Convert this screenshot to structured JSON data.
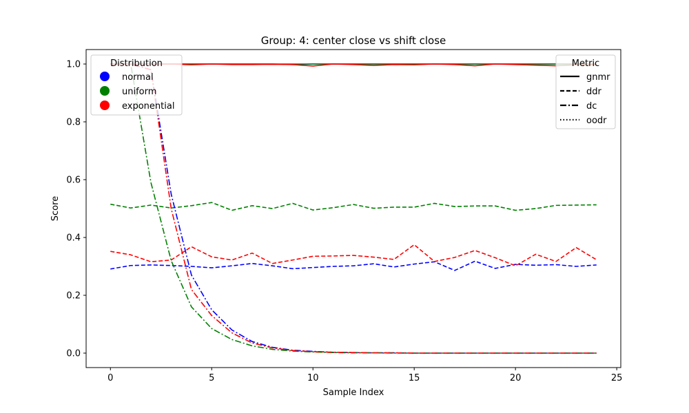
{
  "chart_data": {
    "type": "line",
    "title": "Group: 4: center close vs shift close",
    "xlabel": "Sample Index",
    "ylabel": "Score",
    "xlim": [
      -1.2,
      25.2
    ],
    "ylim": [
      -0.05,
      1.05
    ],
    "xticks": [
      0,
      5,
      10,
      15,
      20,
      25
    ],
    "yticks": [
      0.0,
      0.2,
      0.4,
      0.6,
      0.8,
      1.0
    ],
    "grid": false,
    "x": [
      0,
      1,
      2,
      3,
      4,
      5,
      6,
      7,
      8,
      9,
      10,
      11,
      12,
      13,
      14,
      15,
      16,
      17,
      18,
      19,
      20,
      21,
      22,
      23,
      24
    ],
    "legend_distribution": {
      "title": "Distribution",
      "placement": "top-left",
      "entries": [
        {
          "label": "normal",
          "color": "#0000ff"
        },
        {
          "label": "uniform",
          "color": "#008000"
        },
        {
          "label": "exponential",
          "color": "#ff0000"
        }
      ]
    },
    "legend_metric": {
      "title": "Metric",
      "placement": "top-right",
      "entries": [
        {
          "label": "gnmr",
          "dash": "solid"
        },
        {
          "label": "ddr",
          "dash": "dashed"
        },
        {
          "label": "dc",
          "dash": "dashdot"
        },
        {
          "label": "oodr",
          "dash": "dotted"
        }
      ]
    },
    "series": [
      {
        "distribution": "normal",
        "metric": "gnmr",
        "color": "#0000ff",
        "dash": "solid",
        "values": [
          1.0,
          1.0,
          1.0,
          1.0,
          1.0,
          1.0,
          1.0,
          1.0,
          1.0,
          0.998,
          1.0,
          1.0,
          1.0,
          1.0,
          1.0,
          1.0,
          1.0,
          1.0,
          1.0,
          1.0,
          1.0,
          1.0,
          1.0,
          1.0,
          1.0
        ]
      },
      {
        "distribution": "uniform",
        "metric": "gnmr",
        "color": "#008000",
        "dash": "solid",
        "values": [
          1.0,
          1.0,
          1.0,
          1.0,
          1.0,
          1.0,
          1.0,
          1.0,
          1.0,
          1.0,
          1.0,
          1.0,
          1.0,
          1.0,
          1.0,
          1.0,
          1.0,
          1.0,
          1.0,
          1.0,
          1.0,
          1.0,
          1.0,
          1.0,
          1.0
        ]
      },
      {
        "distribution": "exponential",
        "metric": "gnmr",
        "color": "#ff0000",
        "dash": "solid",
        "values": [
          1.0,
          1.0,
          1.0,
          1.0,
          0.997,
          1.0,
          0.998,
          0.998,
          0.999,
          0.998,
          0.993,
          1.0,
          0.998,
          0.995,
          0.998,
          0.997,
          1.0,
          0.998,
          0.994,
          1.0,
          0.998,
          0.996,
          0.994,
          0.997,
          0.997
        ]
      },
      {
        "distribution": "normal",
        "metric": "ddr",
        "color": "#0000ff",
        "dash": "dashed",
        "values": [
          0.291,
          0.303,
          0.305,
          0.303,
          0.3,
          0.295,
          0.302,
          0.31,
          0.302,
          0.292,
          0.296,
          0.3,
          0.302,
          0.309,
          0.298,
          0.308,
          0.316,
          0.286,
          0.318,
          0.293,
          0.307,
          0.304,
          0.306,
          0.3,
          0.305
        ]
      },
      {
        "distribution": "uniform",
        "metric": "ddr",
        "color": "#008000",
        "dash": "dashed",
        "values": [
          0.515,
          0.502,
          0.512,
          0.502,
          0.51,
          0.521,
          0.494,
          0.51,
          0.5,
          0.518,
          0.495,
          0.503,
          0.514,
          0.501,
          0.505,
          0.505,
          0.518,
          0.507,
          0.509,
          0.509,
          0.494,
          0.5,
          0.511,
          0.512,
          0.513
        ]
      },
      {
        "distribution": "exponential",
        "metric": "ddr",
        "color": "#ff0000",
        "dash": "dashed",
        "values": [
          0.352,
          0.34,
          0.316,
          0.322,
          0.368,
          0.333,
          0.322,
          0.346,
          0.31,
          0.322,
          0.335,
          0.336,
          0.338,
          0.332,
          0.324,
          0.375,
          0.317,
          0.331,
          0.355,
          0.33,
          0.302,
          0.342,
          0.317,
          0.365,
          0.323
        ]
      },
      {
        "distribution": "normal",
        "metric": "dc",
        "color": "#0000ff",
        "dash": "dashdot",
        "values": [
          1.0,
          1.0,
          0.98,
          0.55,
          0.27,
          0.15,
          0.08,
          0.04,
          0.02,
          0.01,
          0.006,
          0.003,
          0.002,
          0.001,
          0.001,
          0.0,
          0.0,
          0.0,
          0.0,
          0.0,
          0.0,
          0.0,
          0.0,
          0.0,
          0.0
        ]
      },
      {
        "distribution": "uniform",
        "metric": "dc",
        "color": "#008000",
        "dash": "dashdot",
        "values": [
          1.0,
          1.0,
          0.59,
          0.32,
          0.16,
          0.085,
          0.047,
          0.025,
          0.013,
          0.007,
          0.004,
          0.002,
          0.001,
          0.001,
          0.0,
          0.0,
          0.0,
          0.0,
          0.0,
          0.0,
          0.0,
          0.0,
          0.0,
          0.0,
          0.0
        ]
      },
      {
        "distribution": "exponential",
        "metric": "dc",
        "color": "#ff0000",
        "dash": "dashdot",
        "values": [
          1.0,
          1.0,
          0.98,
          0.5,
          0.22,
          0.13,
          0.07,
          0.035,
          0.018,
          0.009,
          0.005,
          0.003,
          0.002,
          0.001,
          0.001,
          0.0,
          0.0,
          0.0,
          0.0,
          0.0,
          0.0,
          0.0,
          0.0,
          0.0,
          0.0
        ]
      }
    ]
  }
}
